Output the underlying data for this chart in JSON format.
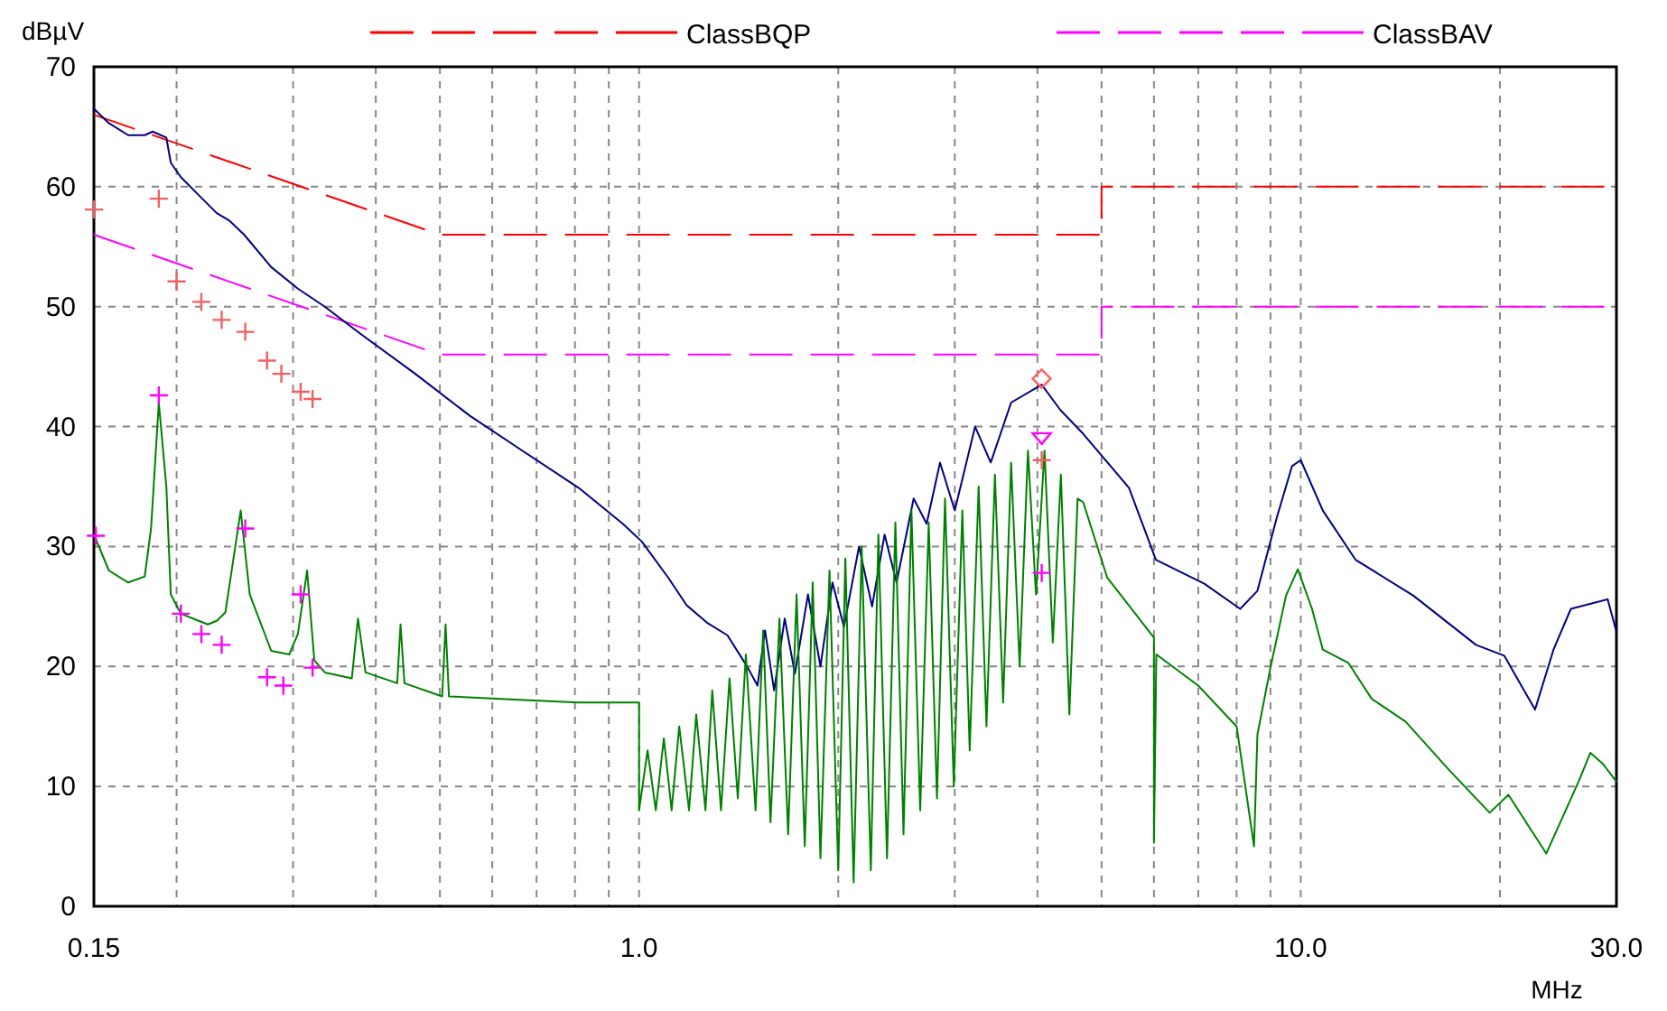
{
  "chart_data": {
    "type": "line",
    "xlabel": "MHz",
    "ylabel": "dBµV",
    "log": "x",
    "grid": true,
    "legend": "top",
    "xlim": [
      0.15,
      30
    ],
    "ylim": [
      0,
      70
    ],
    "xticks": [
      {
        "value": 0.15,
        "label": "0.15"
      },
      {
        "value": 0.2,
        "label": null
      },
      {
        "value": 0.3,
        "label": null
      },
      {
        "value": 0.4,
        "label": null
      },
      {
        "value": 0.5,
        "label": null
      },
      {
        "value": 0.6,
        "label": null
      },
      {
        "value": 0.7,
        "label": null
      },
      {
        "value": 0.8,
        "label": null
      },
      {
        "value": 0.9,
        "label": null
      },
      {
        "value": 1,
        "label": "1.0"
      },
      {
        "value": 2,
        "label": null
      },
      {
        "value": 3,
        "label": null
      },
      {
        "value": 4,
        "label": null
      },
      {
        "value": 5,
        "label": null
      },
      {
        "value": 6,
        "label": null
      },
      {
        "value": 7,
        "label": null
      },
      {
        "value": 8,
        "label": null
      },
      {
        "value": 9,
        "label": null
      },
      {
        "value": 10,
        "label": "10.0"
      },
      {
        "value": 20,
        "label": null
      },
      {
        "value": 30,
        "label": "30.0"
      }
    ],
    "yticks": [
      0,
      10,
      20,
      30,
      40,
      50,
      60,
      70
    ],
    "series": [
      {
        "name": "ClassBQP",
        "color": "#ff0000",
        "line_style": "dashed",
        "marker": "none",
        "x": [
          0.15,
          0.5,
          5,
          5,
          30
        ],
        "values": [
          66,
          56,
          56,
          60,
          60
        ]
      },
      {
        "name": "ClassBAV",
        "color": "#ff00ff",
        "line_style": "dashed",
        "marker": "none",
        "x": [
          0.15,
          0.5,
          5,
          5,
          30
        ],
        "values": [
          56,
          46,
          46,
          50,
          50
        ]
      },
      {
        "color": "#000080",
        "line_style": "solid",
        "marker": "none",
        "x": [
          0.15,
          0.158,
          0.169,
          0.179,
          0.184,
          0.193,
          0.196,
          0.203,
          0.216,
          0.23,
          0.24,
          0.253,
          0.278,
          0.305,
          0.335,
          0.38,
          0.459,
          0.555,
          0.67,
          0.81,
          0.945,
          1.01,
          1.107,
          1.18,
          1.27,
          1.36,
          1.46,
          1.51,
          1.55,
          1.6,
          1.66,
          1.72,
          1.8,
          1.88,
          1.96,
          2.04,
          2.15,
          2.25,
          2.35,
          2.45,
          2.6,
          2.72,
          2.85,
          3.0,
          3.22,
          3.4,
          3.65,
          4.06,
          4.33,
          4.69,
          5.5,
          6.04,
          7.15,
          8.1,
          8.6,
          9.2,
          9.7,
          10,
          10.8,
          12.1,
          14.8,
          18.4,
          20.3,
          22.6,
          24.1,
          25.6,
          29.1,
          30
        ],
        "values": [
          66.5,
          65.3,
          64.3,
          64.3,
          64.6,
          64.1,
          62,
          60.8,
          59.3,
          57.8,
          57.2,
          56,
          53.3,
          51.5,
          50,
          47.7,
          44.4,
          40.9,
          37.9,
          34.9,
          31.9,
          30.4,
          27.4,
          25.1,
          23.6,
          22.6,
          19.9,
          18.4,
          23,
          18,
          24,
          19.4,
          26,
          20,
          27,
          23.3,
          30,
          25,
          31,
          27,
          34,
          31.9,
          37,
          33,
          40,
          37,
          42,
          43.5,
          41.4,
          39.4,
          34.9,
          28.9,
          26.9,
          24.8,
          26.3,
          32.4,
          36.7,
          37.2,
          33,
          28.9,
          25.9,
          21.8,
          20.9,
          16.4,
          21.4,
          24.8,
          25.6,
          22.9
        ]
      },
      {
        "color": "#008000",
        "line_style": "solid",
        "marker": "none",
        "x": [
          0.15,
          0.158,
          0.169,
          0.179,
          0.183,
          0.188,
          0.193,
          0.196,
          0.203,
          0.216,
          0.223,
          0.23,
          0.237,
          0.25,
          0.258,
          0.278,
          0.296,
          0.305,
          0.315,
          0.323,
          0.335,
          0.368,
          0.376,
          0.386,
          0.431,
          0.436,
          0.442,
          0.504,
          0.51,
          0.516,
          0.67,
          0.81,
          0.98,
          1.0,
          1.0,
          1.03,
          1.06,
          1.09,
          1.12,
          1.15,
          1.19,
          1.22,
          1.26,
          1.29,
          1.33,
          1.37,
          1.41,
          1.45,
          1.5,
          1.54,
          1.58,
          1.63,
          1.68,
          1.73,
          1.78,
          1.83,
          1.88,
          1.94,
          2.0,
          2.05,
          2.11,
          2.17,
          2.24,
          2.3,
          2.37,
          2.44,
          2.51,
          2.58,
          2.66,
          2.74,
          2.82,
          2.9,
          2.99,
          3.08,
          3.16,
          3.26,
          3.35,
          3.45,
          3.55,
          3.65,
          3.76,
          3.87,
          3.98,
          4.1,
          4.22,
          4.34,
          4.47,
          4.6,
          4.69,
          5.1,
          6.0,
          6.0,
          6.05,
          7.0,
          8.0,
          8.5,
          8.6,
          9.0,
          9.5,
          9.9,
          10.4,
          10.8,
          11.8,
          12.8,
          14.4,
          16.8,
          19.3,
          20.6,
          23.5,
          26.3,
          27.4,
          28.6,
          30
        ],
        "values": [
          31,
          28,
          27,
          27.5,
          31.5,
          42,
          35,
          26,
          24.4,
          23.8,
          23.5,
          23.8,
          24.5,
          33,
          26,
          21.3,
          21,
          22.7,
          28,
          20.5,
          19.5,
          19,
          24,
          19.5,
          18.6,
          23.5,
          18.6,
          17.5,
          23.5,
          17.5,
          17.2,
          17,
          17,
          17,
          8,
          13,
          8,
          14,
          8,
          15,
          8,
          16,
          8,
          18,
          8,
          19,
          9,
          21,
          8,
          23,
          7,
          24,
          6,
          26,
          5,
          27,
          4,
          28,
          3,
          29,
          2,
          30,
          3,
          31,
          4,
          32,
          6,
          33,
          8,
          32,
          9,
          34,
          10,
          33,
          13,
          35,
          15,
          36,
          17,
          37,
          20,
          38,
          26,
          38,
          22,
          36,
          16,
          34,
          33.7,
          27.4,
          22.4,
          5.3,
          21,
          18.4,
          15,
          5,
          14.3,
          19.9,
          25.9,
          28.1,
          24.8,
          21.4,
          20.3,
          17.3,
          15.4,
          11.3,
          7.8,
          9.3,
          4.4,
          10.4,
          12.8,
          11.9,
          10.4
        ]
      },
      {
        "type": "scatter",
        "color": "#f06060",
        "marker": "cross",
        "x": [
          0.15,
          0.188,
          0.2,
          0.218,
          0.234,
          0.254,
          0.274,
          0.288,
          0.308,
          0.321,
          4.06
        ],
        "values": [
          58.1,
          59,
          52.1,
          50.4,
          48.9,
          47.9,
          45.5,
          44.4,
          42.9,
          42.3,
          37.2
        ]
      },
      {
        "type": "scatter",
        "color": "#ff00ff",
        "marker": "cross",
        "x": [
          0.151,
          0.188,
          0.203,
          0.218,
          0.234,
          0.254,
          0.274,
          0.29,
          0.308,
          0.321,
          4.06
        ],
        "values": [
          30.9,
          42.6,
          24.4,
          22.7,
          21.8,
          31.5,
          19.1,
          18.4,
          26,
          19.9,
          27.8
        ]
      },
      {
        "type": "scatter",
        "color": "#ff6060",
        "marker": "diamond",
        "x": [
          4.06
        ],
        "values": [
          44
        ]
      },
      {
        "type": "scatter",
        "color": "#ff00ff",
        "marker": "triangle",
        "x": [
          4.06
        ],
        "values": [
          39
        ]
      }
    ]
  }
}
